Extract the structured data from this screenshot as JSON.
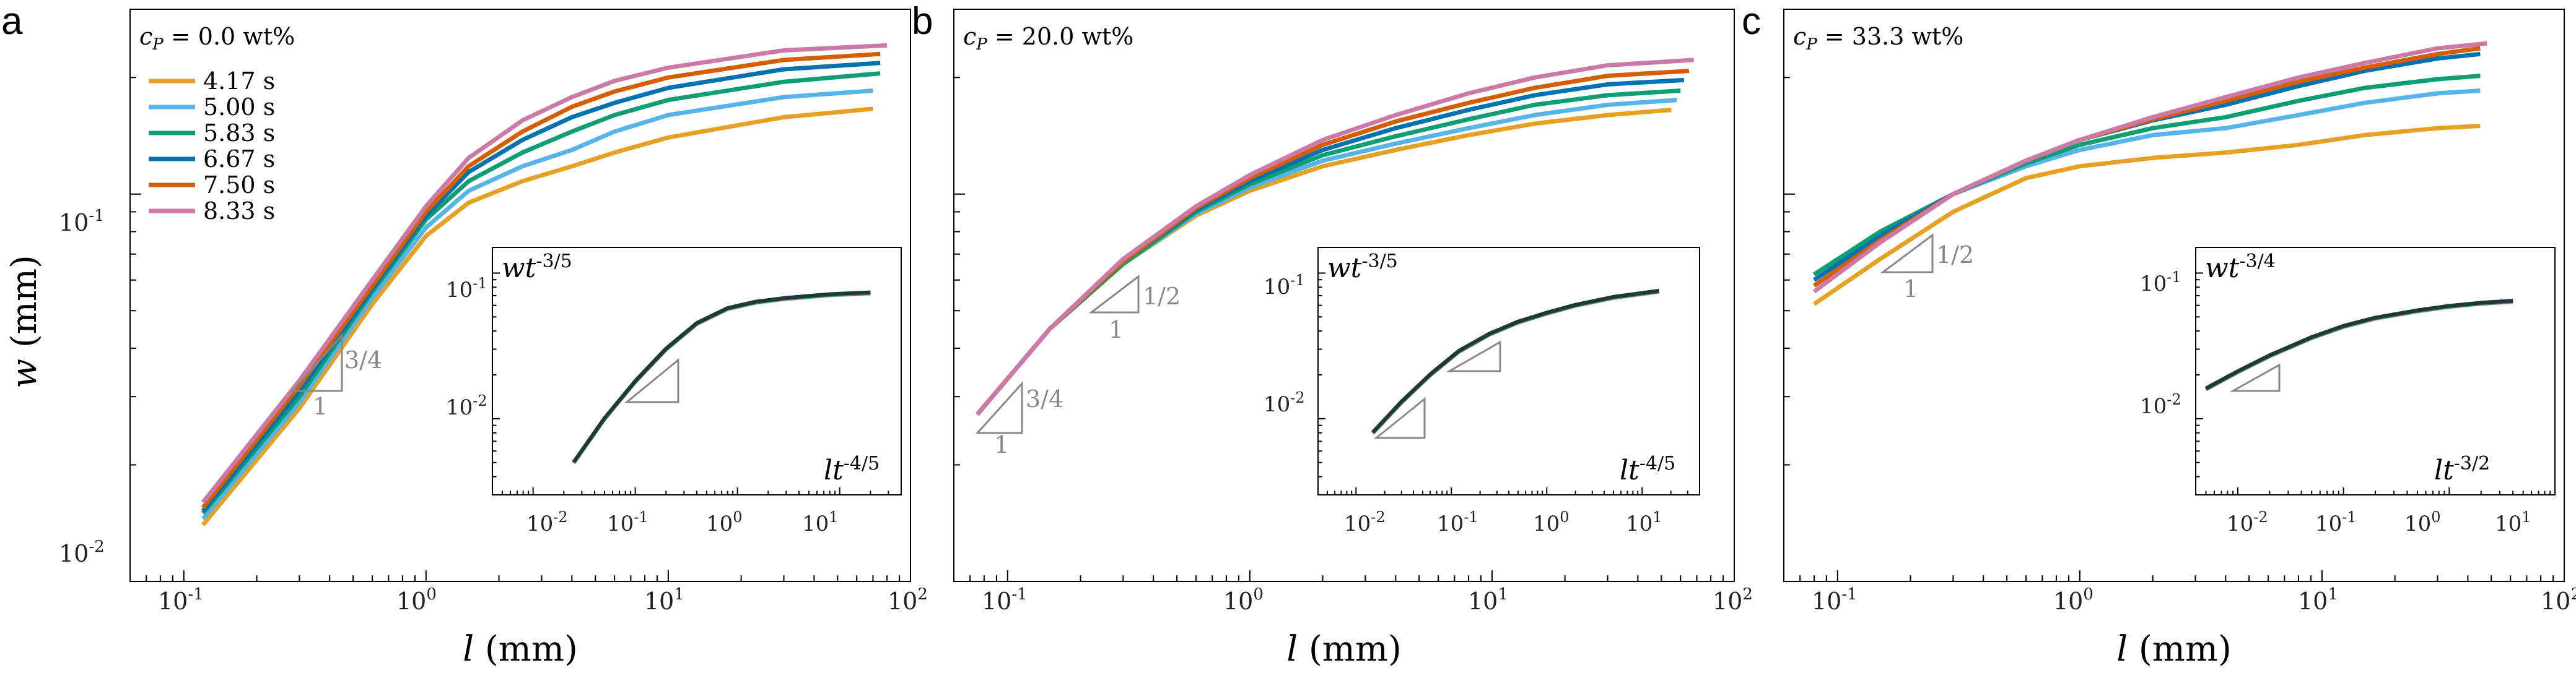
{
  "figure": {
    "panels": [
      {
        "letter": "a",
        "concentration": "c_P = 0.0 wt%",
        "ylabel": "w (mm)",
        "xlabel": "l (mm)",
        "inset": {
          "ylabel": "wt^-3/5",
          "xlabel": "lt^-4/5"
        },
        "slopes": [
          {
            "rise": "3/4",
            "run": "1"
          }
        ]
      },
      {
        "letter": "b",
        "concentration": "c_P = 20.0 wt%",
        "xlabel": "l (mm)",
        "inset": {
          "ylabel": "wt^-3/5",
          "xlabel": "lt^-4/5"
        },
        "slopes": [
          {
            "rise": "1/2",
            "run": "1"
          },
          {
            "rise": "3/4",
            "run": "1"
          }
        ]
      },
      {
        "letter": "c",
        "concentration": "c_P = 33.3 wt%",
        "xlabel": "l (mm)",
        "inset": {
          "ylabel": "wt^-3/4",
          "xlabel": "lt^-3/2"
        },
        "slopes": [
          {
            "rise": "1/2",
            "run": "1"
          }
        ]
      }
    ],
    "legend": [
      "4.17 s",
      "5.00 s",
      "5.83 s",
      "6.67 s",
      "7.50 s",
      "8.33 s"
    ],
    "series_colors": [
      "#E6A024",
      "#56B4E9",
      "#0E9E73",
      "#0072B2",
      "#D55E00",
      "#CC79A7"
    ]
  },
  "chart_data": [
    {
      "type": "line",
      "title": "c_P = 0.0 wt%",
      "xlabel": "l (mm)",
      "ylabel": "w (mm)",
      "xscale": "log",
      "yscale": "log",
      "xlim": [
        0.06,
        100
      ],
      "ylim": [
        0.01,
        0.3
      ],
      "xticks": [
        "10^-1",
        "10^0",
        "10^1",
        "10^2"
      ],
      "yticks": [
        "10^-2",
        "10^-1"
      ],
      "legend_position": "top-left",
      "series": [
        {
          "name": "4.17 s",
          "x": [
            0.12,
            0.3,
            0.6,
            1.0,
            1.5,
            2.5,
            4,
            6,
            10,
            30,
            70
          ],
          "y": [
            0.014,
            0.028,
            0.052,
            0.078,
            0.095,
            0.108,
            0.118,
            0.128,
            0.14,
            0.158,
            0.166
          ]
        },
        {
          "name": "5.00 s",
          "x": [
            0.12,
            0.3,
            0.6,
            1.0,
            1.5,
            2.5,
            4,
            6,
            10,
            30,
            70
          ],
          "y": [
            0.0145,
            0.029,
            0.054,
            0.082,
            0.102,
            0.118,
            0.13,
            0.145,
            0.16,
            0.178,
            0.185
          ]
        },
        {
          "name": "5.83 s",
          "x": [
            0.12,
            0.3,
            0.6,
            1.0,
            1.5,
            2.5,
            4,
            6,
            10,
            30,
            75
          ],
          "y": [
            0.015,
            0.03,
            0.056,
            0.086,
            0.108,
            0.128,
            0.145,
            0.16,
            0.175,
            0.195,
            0.205
          ]
        },
        {
          "name": "6.67 s",
          "x": [
            0.12,
            0.3,
            0.6,
            1.0,
            1.5,
            2.5,
            4,
            6,
            10,
            30,
            75
          ],
          "y": [
            0.0152,
            0.031,
            0.057,
            0.088,
            0.114,
            0.138,
            0.158,
            0.172,
            0.188,
            0.21,
            0.218
          ]
        },
        {
          "name": "7.50 s",
          "x": [
            0.12,
            0.3,
            0.6,
            1.0,
            1.5,
            2.5,
            4,
            6,
            10,
            30,
            75
          ],
          "y": [
            0.0155,
            0.032,
            0.058,
            0.09,
            0.118,
            0.145,
            0.168,
            0.184,
            0.2,
            0.222,
            0.23
          ]
        },
        {
          "name": "8.33 s",
          "x": [
            0.12,
            0.3,
            0.6,
            1.0,
            1.5,
            2.5,
            4,
            6,
            10,
            30,
            80
          ],
          "y": [
            0.016,
            0.033,
            0.06,
            0.093,
            0.124,
            0.155,
            0.178,
            0.196,
            0.212,
            0.235,
            0.242
          ]
        }
      ],
      "annotations": [
        "3/4",
        "1"
      ],
      "inset": {
        "xlabel": "lt^-4/5",
        "ylabel": "wt^-3/5",
        "xscale": "log",
        "yscale": "log",
        "xlim": [
          0.004,
          40
        ],
        "ylim": [
          0.003,
          0.15
        ],
        "xticks": [
          "10^-2",
          "10^-1",
          "10^0",
          "10^1"
        ],
        "yticks": [
          "10^-2",
          "10^-1"
        ],
        "collapsed_curve": {
          "x": [
            0.025,
            0.05,
            0.1,
            0.2,
            0.4,
            0.8,
            1.5,
            3,
            8,
            20
          ],
          "y": [
            0.005,
            0.01,
            0.018,
            0.03,
            0.045,
            0.057,
            0.063,
            0.067,
            0.071,
            0.073
          ]
        }
      }
    },
    {
      "type": "line",
      "title": "c_P = 20.0 wt%",
      "xlabel": "l (mm)",
      "ylabel": "w (mm)",
      "xscale": "log",
      "yscale": "log",
      "xlim": [
        0.06,
        100
      ],
      "ylim": [
        0.01,
        0.3
      ],
      "xticks": [
        "10^-1",
        "10^0",
        "10^1",
        "10^2"
      ],
      "series": [
        {
          "name": "4.17 s",
          "x": [
            0.075,
            0.15,
            0.3,
            0.6,
            1.0,
            2,
            4,
            8,
            15,
            30,
            55
          ],
          "y": [
            0.027,
            0.045,
            0.066,
            0.088,
            0.102,
            0.118,
            0.13,
            0.142,
            0.152,
            0.16,
            0.165
          ]
        },
        {
          "name": "5.00 s",
          "x": [
            0.075,
            0.15,
            0.3,
            0.6,
            1.0,
            2,
            4,
            8,
            15,
            30,
            58
          ],
          "y": [
            0.027,
            0.045,
            0.066,
            0.089,
            0.104,
            0.122,
            0.135,
            0.148,
            0.16,
            0.17,
            0.175
          ]
        },
        {
          "name": "5.83 s",
          "x": [
            0.075,
            0.15,
            0.3,
            0.6,
            1.0,
            2,
            4,
            8,
            15,
            30,
            60
          ],
          "y": [
            0.027,
            0.045,
            0.066,
            0.09,
            0.106,
            0.126,
            0.141,
            0.156,
            0.17,
            0.18,
            0.185
          ]
        },
        {
          "name": "6.67 s",
          "x": [
            0.075,
            0.15,
            0.3,
            0.6,
            1.0,
            2,
            4,
            8,
            15,
            30,
            62
          ],
          "y": [
            0.027,
            0.045,
            0.067,
            0.091,
            0.108,
            0.13,
            0.148,
            0.165,
            0.18,
            0.192,
            0.197
          ]
        },
        {
          "name": "7.50 s",
          "x": [
            0.075,
            0.15,
            0.3,
            0.6,
            1.0,
            2,
            4,
            8,
            15,
            30,
            65
          ],
          "y": [
            0.027,
            0.045,
            0.067,
            0.092,
            0.11,
            0.134,
            0.154,
            0.172,
            0.188,
            0.202,
            0.208
          ]
        },
        {
          "name": "8.33 s",
          "x": [
            0.075,
            0.15,
            0.3,
            0.6,
            1.0,
            2,
            4,
            8,
            15,
            30,
            68
          ],
          "y": [
            0.027,
            0.045,
            0.068,
            0.093,
            0.112,
            0.138,
            0.16,
            0.182,
            0.2,
            0.215,
            0.222
          ]
        }
      ],
      "annotations": [
        "1/2",
        "1",
        "3/4",
        "1"
      ],
      "inset": {
        "xlabel": "lt^-4/5",
        "ylabel": "wt^-3/5",
        "xscale": "log",
        "yscale": "log",
        "xlim": [
          0.004,
          40
        ],
        "ylim": [
          0.003,
          0.15
        ],
        "xticks": [
          "10^-2",
          "10^-1",
          "10^0",
          "10^1"
        ],
        "yticks": [
          "10^-2",
          "10^-1"
        ],
        "collapsed_curve": {
          "x": [
            0.015,
            0.03,
            0.06,
            0.12,
            0.25,
            0.5,
            1,
            2,
            5,
            15
          ],
          "y": [
            0.008,
            0.013,
            0.02,
            0.029,
            0.038,
            0.046,
            0.053,
            0.06,
            0.068,
            0.075
          ]
        }
      }
    },
    {
      "type": "line",
      "title": "c_P = 33.3 wt%",
      "xlabel": "l (mm)",
      "ylabel": "w (mm)",
      "xscale": "log",
      "yscale": "log",
      "xlim": [
        0.06,
        100
      ],
      "ylim": [
        0.01,
        0.3
      ],
      "xticks": [
        "10^-1",
        "10^0",
        "10^1",
        "10^2"
      ],
      "series": [
        {
          "name": "4.17 s",
          "x": [
            0.08,
            0.15,
            0.3,
            0.6,
            1.0,
            2,
            4,
            8,
            15,
            30,
            45
          ],
          "y": [
            0.052,
            0.068,
            0.09,
            0.11,
            0.118,
            0.124,
            0.128,
            0.134,
            0.142,
            0.148,
            0.15
          ]
        },
        {
          "name": "5.00 s",
          "x": [
            0.08,
            0.15,
            0.3,
            0.6,
            1.0,
            2,
            4,
            8,
            15,
            30,
            45
          ],
          "y": [
            0.062,
            0.08,
            0.1,
            0.118,
            0.13,
            0.142,
            0.148,
            0.16,
            0.172,
            0.182,
            0.185
          ]
        },
        {
          "name": "5.83 s",
          "x": [
            0.08,
            0.15,
            0.3,
            0.6,
            1.0,
            2,
            4,
            8,
            15,
            30,
            45
          ],
          "y": [
            0.062,
            0.08,
            0.1,
            0.12,
            0.134,
            0.148,
            0.158,
            0.174,
            0.188,
            0.198,
            0.202
          ]
        },
        {
          "name": "6.67 s",
          "x": [
            0.08,
            0.15,
            0.3,
            0.6,
            1.0,
            2,
            4,
            8,
            15,
            30,
            45
          ],
          "y": [
            0.06,
            0.078,
            0.1,
            0.122,
            0.138,
            0.155,
            0.17,
            0.19,
            0.208,
            0.224,
            0.23
          ]
        },
        {
          "name": "7.50 s",
          "x": [
            0.08,
            0.15,
            0.3,
            0.6,
            1.0,
            2,
            4,
            8,
            15,
            30,
            45
          ],
          "y": [
            0.058,
            0.076,
            0.1,
            0.122,
            0.138,
            0.156,
            0.174,
            0.195,
            0.212,
            0.23,
            0.238
          ]
        },
        {
          "name": "8.33 s",
          "x": [
            0.08,
            0.15,
            0.3,
            0.6,
            1.0,
            2,
            4,
            8,
            15,
            30,
            48
          ],
          "y": [
            0.056,
            0.075,
            0.1,
            0.122,
            0.138,
            0.158,
            0.178,
            0.2,
            0.218,
            0.238,
            0.245
          ]
        }
      ],
      "annotations": [
        "1/2",
        "1"
      ],
      "inset": {
        "xlabel": "lt^-3/2",
        "ylabel": "wt^-3/4",
        "xscale": "log",
        "yscale": "log",
        "xlim": [
          0.004,
          10
        ],
        "ylim": [
          0.003,
          0.15
        ],
        "xticks": [
          "10^-2",
          "10^-1",
          "10^0",
          "10^1"
        ],
        "yticks": [
          "10^-2",
          "10^-1"
        ],
        "collapsed_curve": {
          "x": [
            0.005,
            0.01,
            0.02,
            0.05,
            0.1,
            0.2,
            0.5,
            1,
            2,
            4
          ],
          "y": [
            0.016,
            0.021,
            0.027,
            0.036,
            0.043,
            0.049,
            0.055,
            0.059,
            0.062,
            0.064
          ]
        }
      }
    }
  ]
}
